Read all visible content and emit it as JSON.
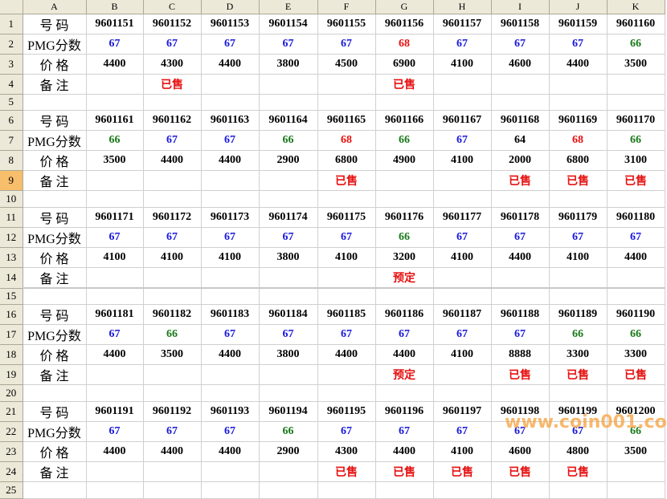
{
  "columns": [
    "A",
    "B",
    "C",
    "D",
    "E",
    "F",
    "G",
    "H",
    "I",
    "J",
    "K"
  ],
  "row_labels": {
    "code": "号 码",
    "score": "PMG分数",
    "price": "价 格",
    "note": "备 注"
  },
  "selected_row": 9,
  "colors": {
    "blue": "#1a1adc",
    "green": "#1a7a1a",
    "red": "#e61010",
    "black": "#000000"
  },
  "watermark": "www.coin001.com",
  "blocks": [
    {
      "codes": [
        "9601151",
        "9601152",
        "9601153",
        "9601154",
        "9601155",
        "9601156",
        "9601157",
        "9601158",
        "9601159",
        "9601160"
      ],
      "scores": [
        "67",
        "67",
        "67",
        "67",
        "67",
        "68",
        "67",
        "67",
        "67",
        "66"
      ],
      "score_colors": [
        "blue",
        "blue",
        "blue",
        "blue",
        "blue",
        "red",
        "blue",
        "blue",
        "blue",
        "green"
      ],
      "prices": [
        "4400",
        "4300",
        "4400",
        "3800",
        "4500",
        "6900",
        "4100",
        "4600",
        "4400",
        "3500"
      ],
      "notes": [
        "",
        "已售",
        "",
        "",
        "",
        "已售",
        "",
        "",
        "",
        ""
      ]
    },
    {
      "codes": [
        "9601161",
        "9601162",
        "9601163",
        "9601164",
        "9601165",
        "9601166",
        "9601167",
        "9601168",
        "9601169",
        "9601170"
      ],
      "scores": [
        "66",
        "67",
        "67",
        "66",
        "68",
        "66",
        "67",
        "64",
        "68",
        "66"
      ],
      "score_colors": [
        "green",
        "blue",
        "blue",
        "green",
        "red",
        "green",
        "blue",
        "black",
        "red",
        "green"
      ],
      "prices": [
        "3500",
        "4400",
        "4400",
        "2900",
        "6800",
        "4900",
        "4100",
        "2000",
        "6800",
        "3100"
      ],
      "notes": [
        "",
        "",
        "",
        "",
        "已售",
        "",
        "",
        "已售",
        "已售",
        "已售"
      ]
    },
    {
      "codes": [
        "9601171",
        "9601172",
        "9601173",
        "9601174",
        "9601175",
        "9601176",
        "9601177",
        "9601178",
        "9601179",
        "9601180"
      ],
      "scores": [
        "67",
        "67",
        "67",
        "67",
        "67",
        "66",
        "67",
        "67",
        "67",
        "67"
      ],
      "score_colors": [
        "blue",
        "blue",
        "blue",
        "blue",
        "blue",
        "green",
        "blue",
        "blue",
        "blue",
        "blue"
      ],
      "prices": [
        "4100",
        "4100",
        "4100",
        "3800",
        "4100",
        "3200",
        "4100",
        "4400",
        "4100",
        "4400"
      ],
      "notes": [
        "",
        "",
        "",
        "",
        "",
        "预定",
        "",
        "",
        "",
        ""
      ]
    },
    {
      "codes": [
        "9601181",
        "9601182",
        "9601183",
        "9601184",
        "9601185",
        "9601186",
        "9601187",
        "9601188",
        "9601189",
        "9601190"
      ],
      "scores": [
        "67",
        "66",
        "67",
        "67",
        "67",
        "67",
        "67",
        "67",
        "66",
        "66"
      ],
      "score_colors": [
        "blue",
        "green",
        "blue",
        "blue",
        "blue",
        "blue",
        "blue",
        "blue",
        "green",
        "green"
      ],
      "prices": [
        "4400",
        "3500",
        "4400",
        "3800",
        "4400",
        "4400",
        "4100",
        "8888",
        "3300",
        "3300"
      ],
      "notes": [
        "",
        "",
        "",
        "",
        "",
        "预定",
        "",
        "已售",
        "已售",
        "已售"
      ]
    },
    {
      "codes": [
        "9601191",
        "9601192",
        "9601193",
        "9601194",
        "9601195",
        "9601196",
        "9601197",
        "9601198",
        "9601199",
        "9601200"
      ],
      "scores": [
        "67",
        "67",
        "67",
        "66",
        "67",
        "67",
        "67",
        "67",
        "67",
        "66"
      ],
      "score_colors": [
        "blue",
        "blue",
        "blue",
        "green",
        "blue",
        "blue",
        "blue",
        "blue",
        "blue",
        "green"
      ],
      "prices": [
        "4400",
        "4400",
        "4400",
        "2900",
        "4300",
        "4400",
        "4100",
        "4600",
        "4800",
        "3500"
      ],
      "notes": [
        "",
        "",
        "",
        "",
        "已售",
        "已售",
        "已售",
        "已售",
        "已售",
        ""
      ]
    }
  ]
}
